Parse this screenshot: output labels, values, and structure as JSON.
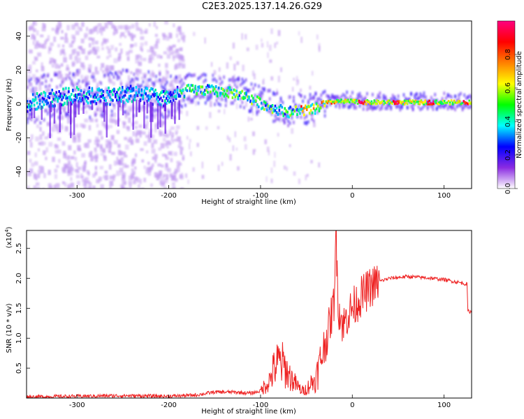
{
  "title": "C2E3.2025.137.14.26.G29",
  "chart_data": [
    {
      "type": "heatmap",
      "xlabel": "Height of straight line (km)",
      "ylabel": "Frequency (Hz)",
      "xlim": [
        -355,
        130
      ],
      "ylim": [
        -50,
        49
      ],
      "xticks": [
        -300,
        -200,
        -100,
        0,
        100
      ],
      "yticks": [
        -40,
        -20,
        0,
        20,
        40
      ],
      "colorbar": {
        "label": "Normalized spectral amplitude",
        "range": [
          0,
          1
        ],
        "ticks": [
          "0.0",
          "0.2",
          "0.4",
          "0.6",
          "0.8"
        ],
        "colors": [
          "#ffffff",
          "#8a2be2",
          "#0000ff",
          "#00ffff",
          "#00ff00",
          "#ffff00",
          "#ff8000",
          "#ff0000",
          "#ff0080"
        ]
      },
      "ridge": {
        "x": [
          -355,
          -330,
          -300,
          -270,
          -240,
          -210,
          -190,
          -180,
          -160,
          -140,
          -120,
          -100,
          -85,
          -70,
          -60,
          -50,
          -40,
          -30,
          -20,
          -10,
          0,
          20,
          60,
          100,
          130
        ],
        "y": [
          0,
          3,
          5,
          4,
          6,
          3,
          5,
          8,
          8,
          7,
          5,
          0,
          -3,
          -5,
          -4,
          -4,
          -3,
          0,
          1,
          1,
          1,
          0.5,
          0.5,
          0.5,
          0.5
        ]
      }
    },
    {
      "type": "line",
      "xlabel": "Height of straight line (km)",
      "ylabel": "SNR (10 * v/v)",
      "multiplier": "(x10",
      "multiplier_exp": "4",
      "multiplier_close": ")",
      "xlim": [
        -355,
        130
      ],
      "ylim": [
        0,
        2.8
      ],
      "xticks": [
        -300,
        -200,
        -100,
        0,
        100
      ],
      "yticks": [
        0.5,
        1.0,
        1.5,
        2.0,
        2.5
      ],
      "ytick_labels": [
        "0.5",
        "1.0",
        "1.5",
        "2.0",
        "2.5"
      ],
      "series": [
        {
          "color": "#ee2222",
          "x": [
            -355,
            -300,
            -250,
            -200,
            -170,
            -150,
            -130,
            -110,
            -100,
            -90,
            -85,
            -80,
            -75,
            -70,
            -65,
            -60,
            -55,
            -50,
            -45,
            -40,
            -35,
            -30,
            -25,
            -20,
            -18,
            -15,
            -10,
            -5,
            0,
            10,
            20,
            30,
            40,
            60,
            80,
            100,
            120,
            125,
            126,
            130
          ],
          "y": [
            0.02,
            0.03,
            0.04,
            0.03,
            0.05,
            0.1,
            0.1,
            0.08,
            0.12,
            0.3,
            0.5,
            0.6,
            0.55,
            0.4,
            0.3,
            0.2,
            0.12,
            0.15,
            0.25,
            0.3,
            0.6,
            0.9,
            1.2,
            1.6,
            2.8,
            1.5,
            1.2,
            1.4,
            1.5,
            1.7,
            1.85,
            1.95,
            2.0,
            2.03,
            2.01,
            1.98,
            1.92,
            1.9,
            1.45,
            1.44
          ]
        }
      ]
    }
  ]
}
